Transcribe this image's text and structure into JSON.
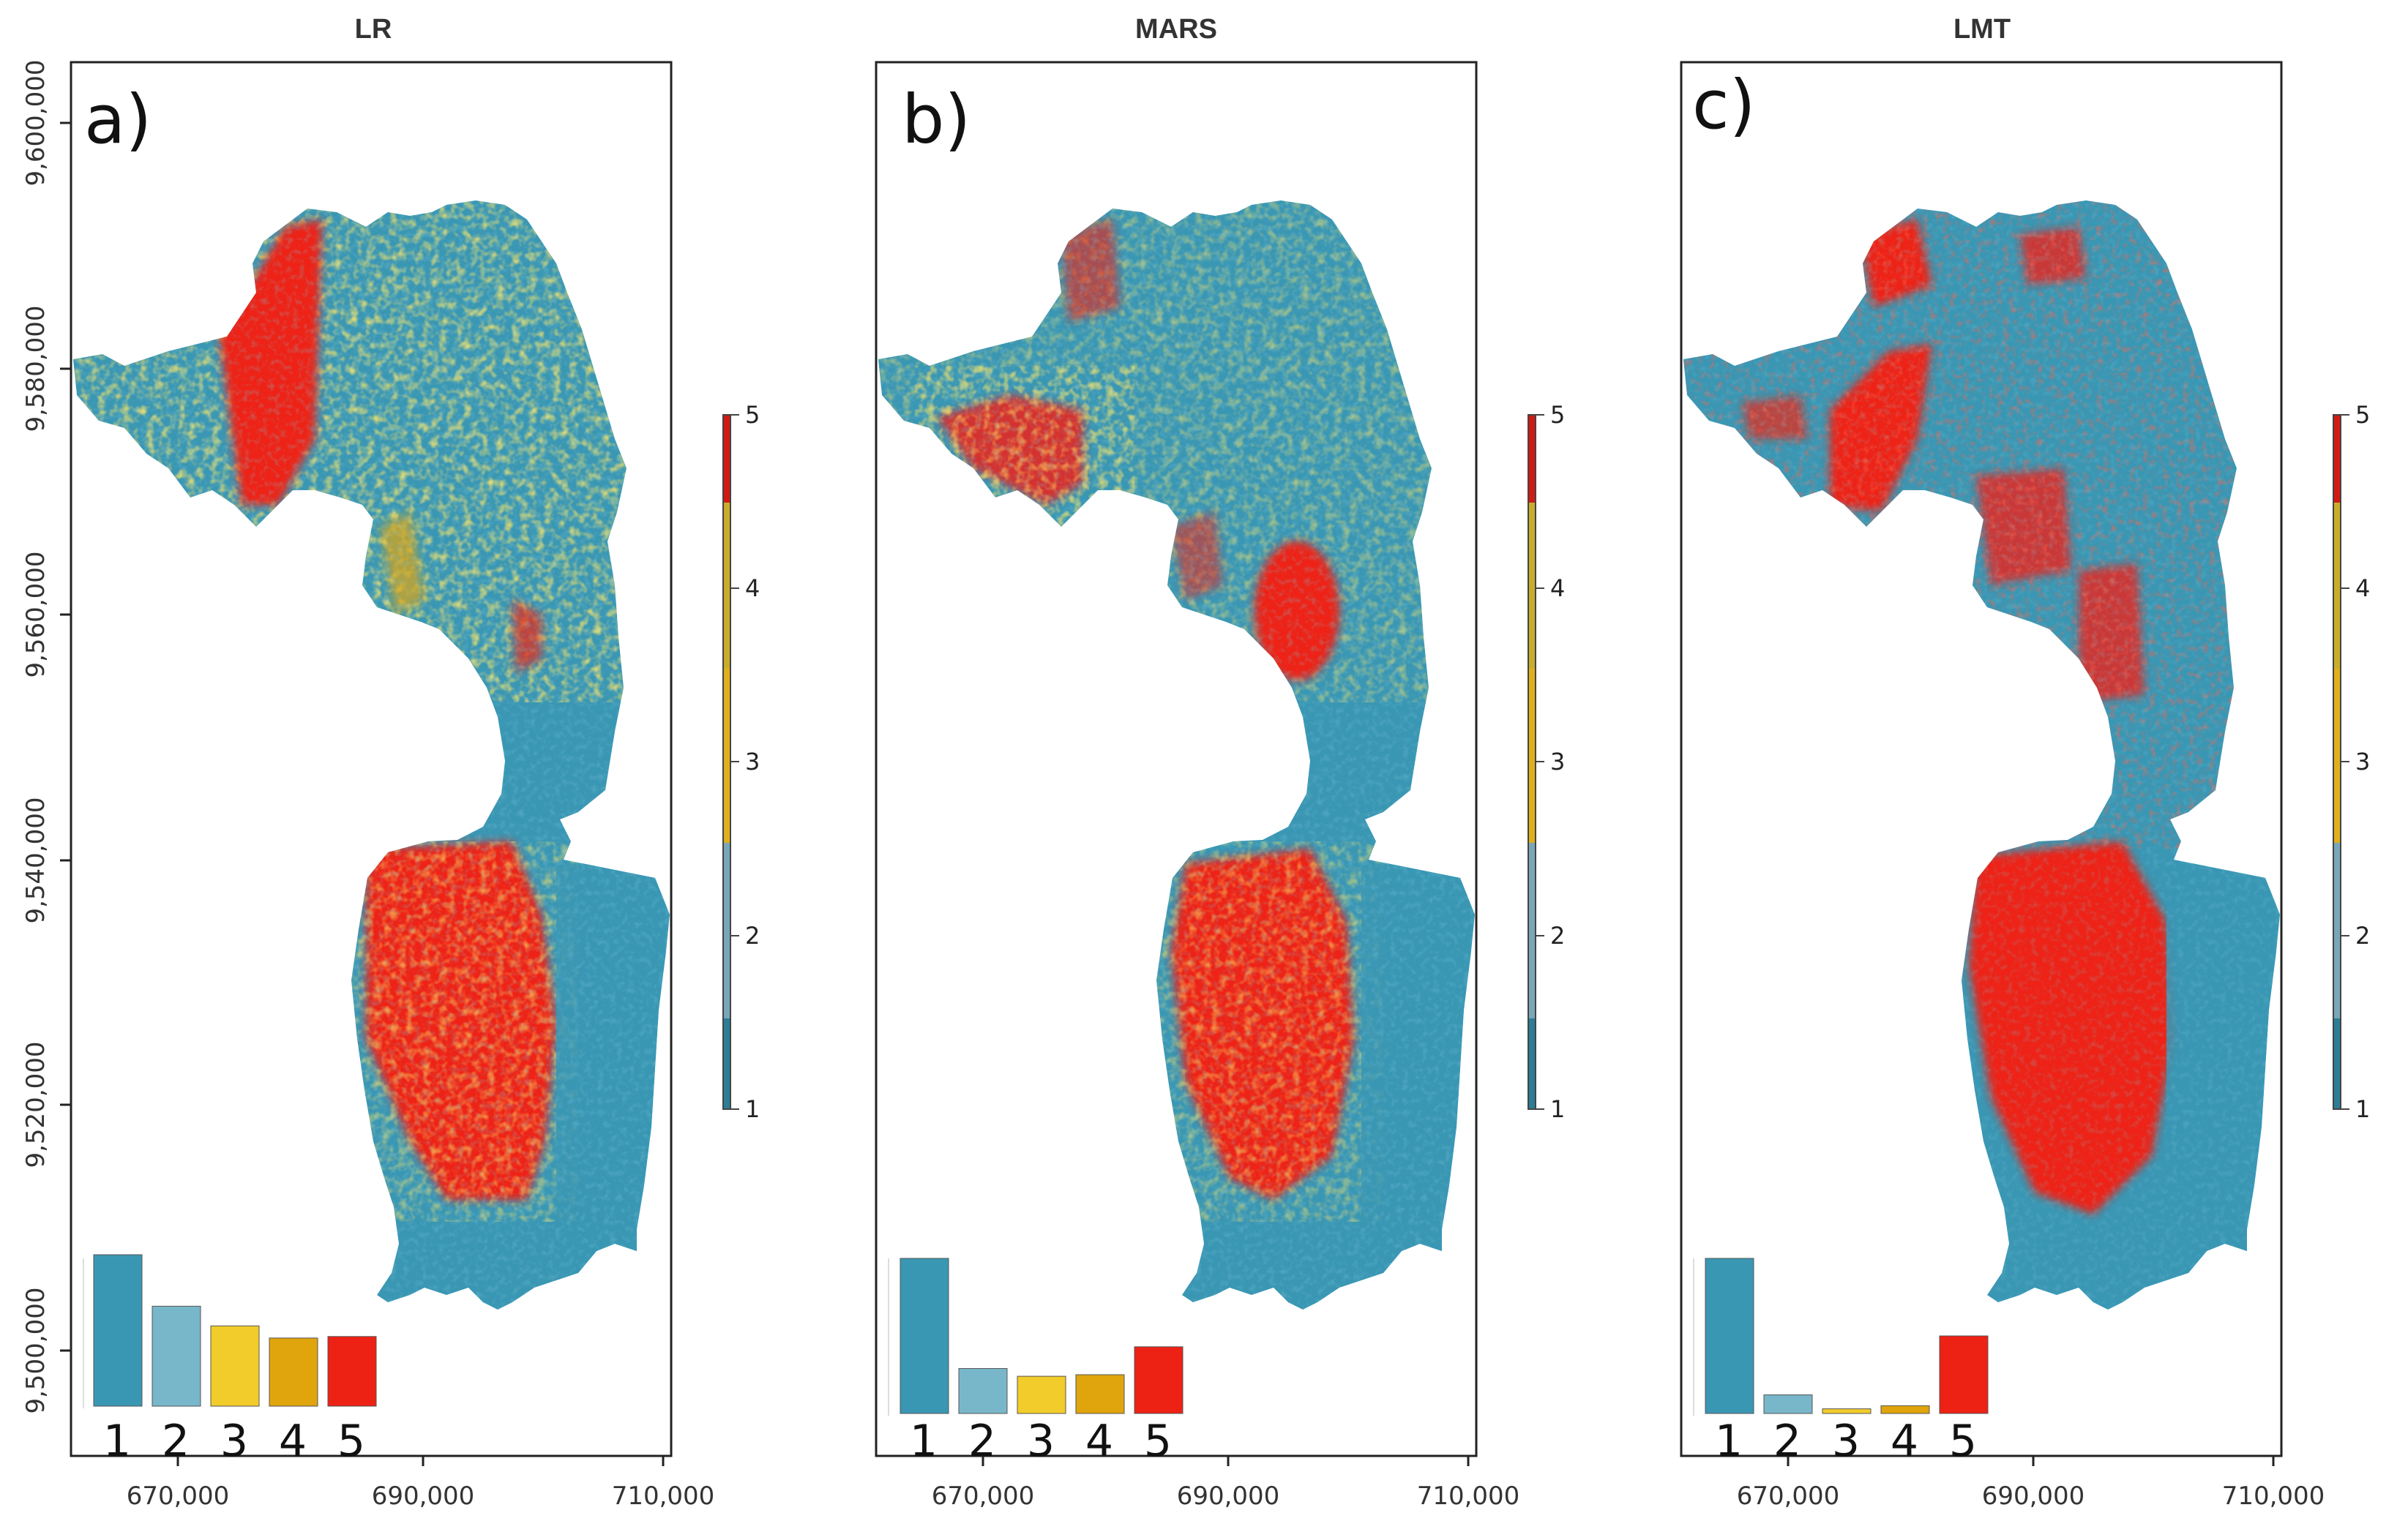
{
  "chart_data": [
    {
      "type": "heatmap",
      "title": "LR",
      "panel_label": "a)",
      "xlabel": "",
      "ylabel": "",
      "x_ticks": [
        "670,000",
        "690,000",
        "710,000"
      ],
      "y_ticks": [
        "9,500,000",
        "9,520,000",
        "9,540,000",
        "9,560,000",
        "9,580,000",
        "9,600,000"
      ],
      "xlim": [
        663000,
        710500
      ],
      "ylim": [
        9495000,
        9605000
      ],
      "colorbar": {
        "ticks": [
          "1",
          "2",
          "3",
          "4",
          "5"
        ],
        "range": [
          1,
          5
        ]
      },
      "classes": [
        "1",
        "2",
        "3",
        "4",
        "5"
      ],
      "class_colors": [
        "#3a97b4",
        "#78b7ca",
        "#f2cc2a",
        "#e0a50c",
        "#ee2115"
      ],
      "histogram": {
        "categories": [
          "1",
          "2",
          "3",
          "4",
          "5"
        ],
        "values": [
          1.0,
          0.66,
          0.53,
          0.45,
          0.46
        ]
      }
    },
    {
      "type": "heatmap",
      "title": "MARS",
      "panel_label": "b)",
      "xlabel": "",
      "ylabel": "",
      "x_ticks": [
        "670,000",
        "690,000",
        "710,000"
      ],
      "y_ticks": [],
      "xlim": [
        663000,
        710500
      ],
      "ylim": [
        9495000,
        9605000
      ],
      "colorbar": {
        "ticks": [
          "1",
          "2",
          "3",
          "4",
          "5"
        ],
        "range": [
          1,
          5
        ]
      },
      "classes": [
        "1",
        "2",
        "3",
        "4",
        "5"
      ],
      "class_colors": [
        "#3a97b4",
        "#78b7ca",
        "#f2cc2a",
        "#e0a50c",
        "#ee2115"
      ],
      "histogram": {
        "categories": [
          "1",
          "2",
          "3",
          "4",
          "5"
        ],
        "values": [
          1.0,
          0.29,
          0.24,
          0.25,
          0.43
        ]
      }
    },
    {
      "type": "heatmap",
      "title": "LMT",
      "panel_label": "c)",
      "xlabel": "",
      "ylabel": "",
      "x_ticks": [
        "670,000",
        "690,000",
        "710,000"
      ],
      "y_ticks": [],
      "xlim": [
        663000,
        710500
      ],
      "ylim": [
        9495000,
        9605000
      ],
      "colorbar": {
        "ticks": [
          "1",
          "2",
          "3",
          "4",
          "5"
        ],
        "range": [
          1,
          5
        ]
      },
      "classes": [
        "1",
        "2",
        "3",
        "4",
        "5"
      ],
      "class_colors": [
        "#3a97b4",
        "#78b7ca",
        "#f2cc2a",
        "#e0a50c",
        "#ee2115"
      ],
      "histogram": {
        "categories": [
          "1",
          "2",
          "3",
          "4",
          "5"
        ],
        "values": [
          1.0,
          0.12,
          0.03,
          0.05,
          0.5
        ]
      }
    }
  ]
}
